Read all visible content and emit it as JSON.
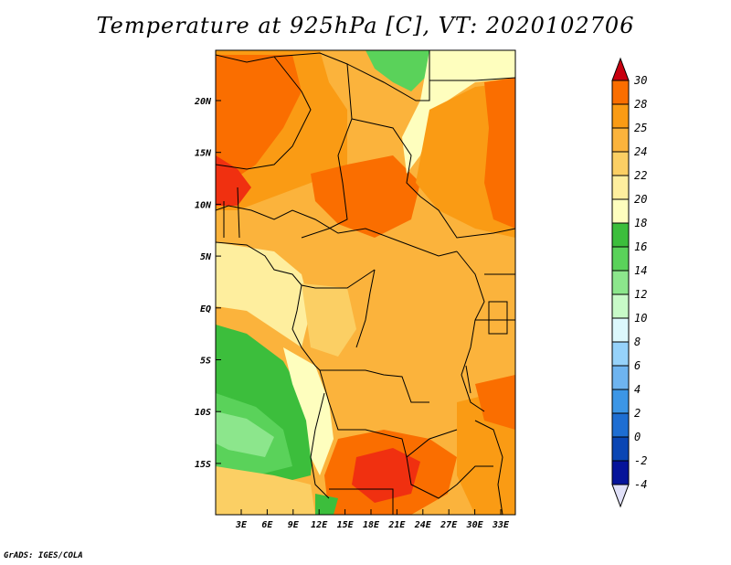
{
  "title": "Temperature at 925hPa [C], VT: 2020102706",
  "credit": "GrADS: IGES/COLA",
  "map": {
    "lat_labels": [
      "20N",
      "15N",
      "10N",
      "5N",
      "EQ",
      "5S",
      "10S",
      "15S"
    ],
    "lon_labels": [
      "3E",
      "6E",
      "9E",
      "12E",
      "15E",
      "18E",
      "21E",
      "24E",
      "27E",
      "30E",
      "33E"
    ]
  },
  "colorbar": {
    "labels": [
      "30",
      "28",
      "25",
      "24",
      "22",
      "20",
      "18",
      "16",
      "14",
      "12",
      "10",
      "8",
      "6",
      "4",
      "2",
      "0",
      "-2",
      "-4"
    ],
    "colors": [
      "#f03010",
      "#fa6e00",
      "#fa9b14",
      "#fbb33c",
      "#fbcf64",
      "#feee9e",
      "#fefebe",
      "#3cbe3c",
      "#5ad25a",
      "#8ce68c",
      "#c8fac8",
      "#dcf8fc",
      "#96d2fa",
      "#6eb4f0",
      "#3c96e6",
      "#1e6ed2",
      "#0a46b4",
      "#06149a"
    ],
    "top_arrow_color": "#c80010",
    "bottom_arrow_color": "#e0e0f8"
  }
}
